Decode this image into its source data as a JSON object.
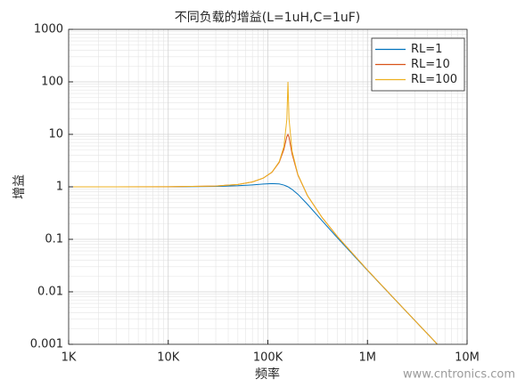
{
  "chart_data": {
    "type": "line",
    "title": "不同负载的增益(L=1uH,C=1uF)",
    "x_label": "频率",
    "y_label": "增益",
    "watermark": "www.cntronics.com",
    "xscale": "log",
    "yscale": "log",
    "xlim": [
      1000,
      10000000
    ],
    "ylim": [
      0.001,
      1000
    ],
    "xticks": [
      {
        "value": 1000,
        "label": "1K"
      },
      {
        "value": 10000,
        "label": "10K"
      },
      {
        "value": 100000,
        "label": "100K"
      },
      {
        "value": 1000000,
        "label": "1M"
      },
      {
        "value": 10000000,
        "label": "10M"
      }
    ],
    "yticks": [
      0.001,
      0.01,
      0.1,
      1,
      10,
      100,
      1000
    ],
    "grid": true,
    "legend_position": "upper-right",
    "x": [
      1000,
      10000,
      30000,
      50000,
      70000,
      90000,
      110000,
      130000,
      145000,
      155000,
      159155,
      163000,
      175000,
      200000,
      250000,
      350000,
      500000,
      1000000,
      2000000,
      5000000
    ],
    "series": [
      {
        "name": "RL=1",
        "color": "#0072bd",
        "values": [
          1.0,
          1.002,
          1.018,
          1.048,
          1.089,
          1.13,
          1.154,
          1.134,
          1.079,
          1.025,
          1.0,
          0.975,
          0.893,
          0.7227,
          0.4652,
          0.2262,
          0.1063,
          0.02565,
          0.006353,
          0.0010137
        ]
      },
      {
        "name": "RL=10",
        "color": "#d95319",
        "values": [
          1.0,
          1.004,
          1.037,
          1.109,
          1.238,
          1.465,
          1.898,
          2.918,
          5.185,
          9.075,
          10,
          8.811,
          4.234,
          1.687,
          0.6776,
          0.2603,
          0.1127,
          0.02599,
          0.006373,
          0.0010142
        ]
      },
      {
        "name": "RL=100",
        "color": "#edb120",
        "values": [
          1.0,
          1.004,
          1.037,
          1.1095,
          1.24,
          1.47,
          1.914,
          3.004,
          5.875,
          19.07,
          100,
          20.02,
          4.777,
          1.726,
          0.6814,
          0.2607,
          0.1127,
          0.02599,
          0.006373,
          0.0010142
        ]
      }
    ]
  }
}
